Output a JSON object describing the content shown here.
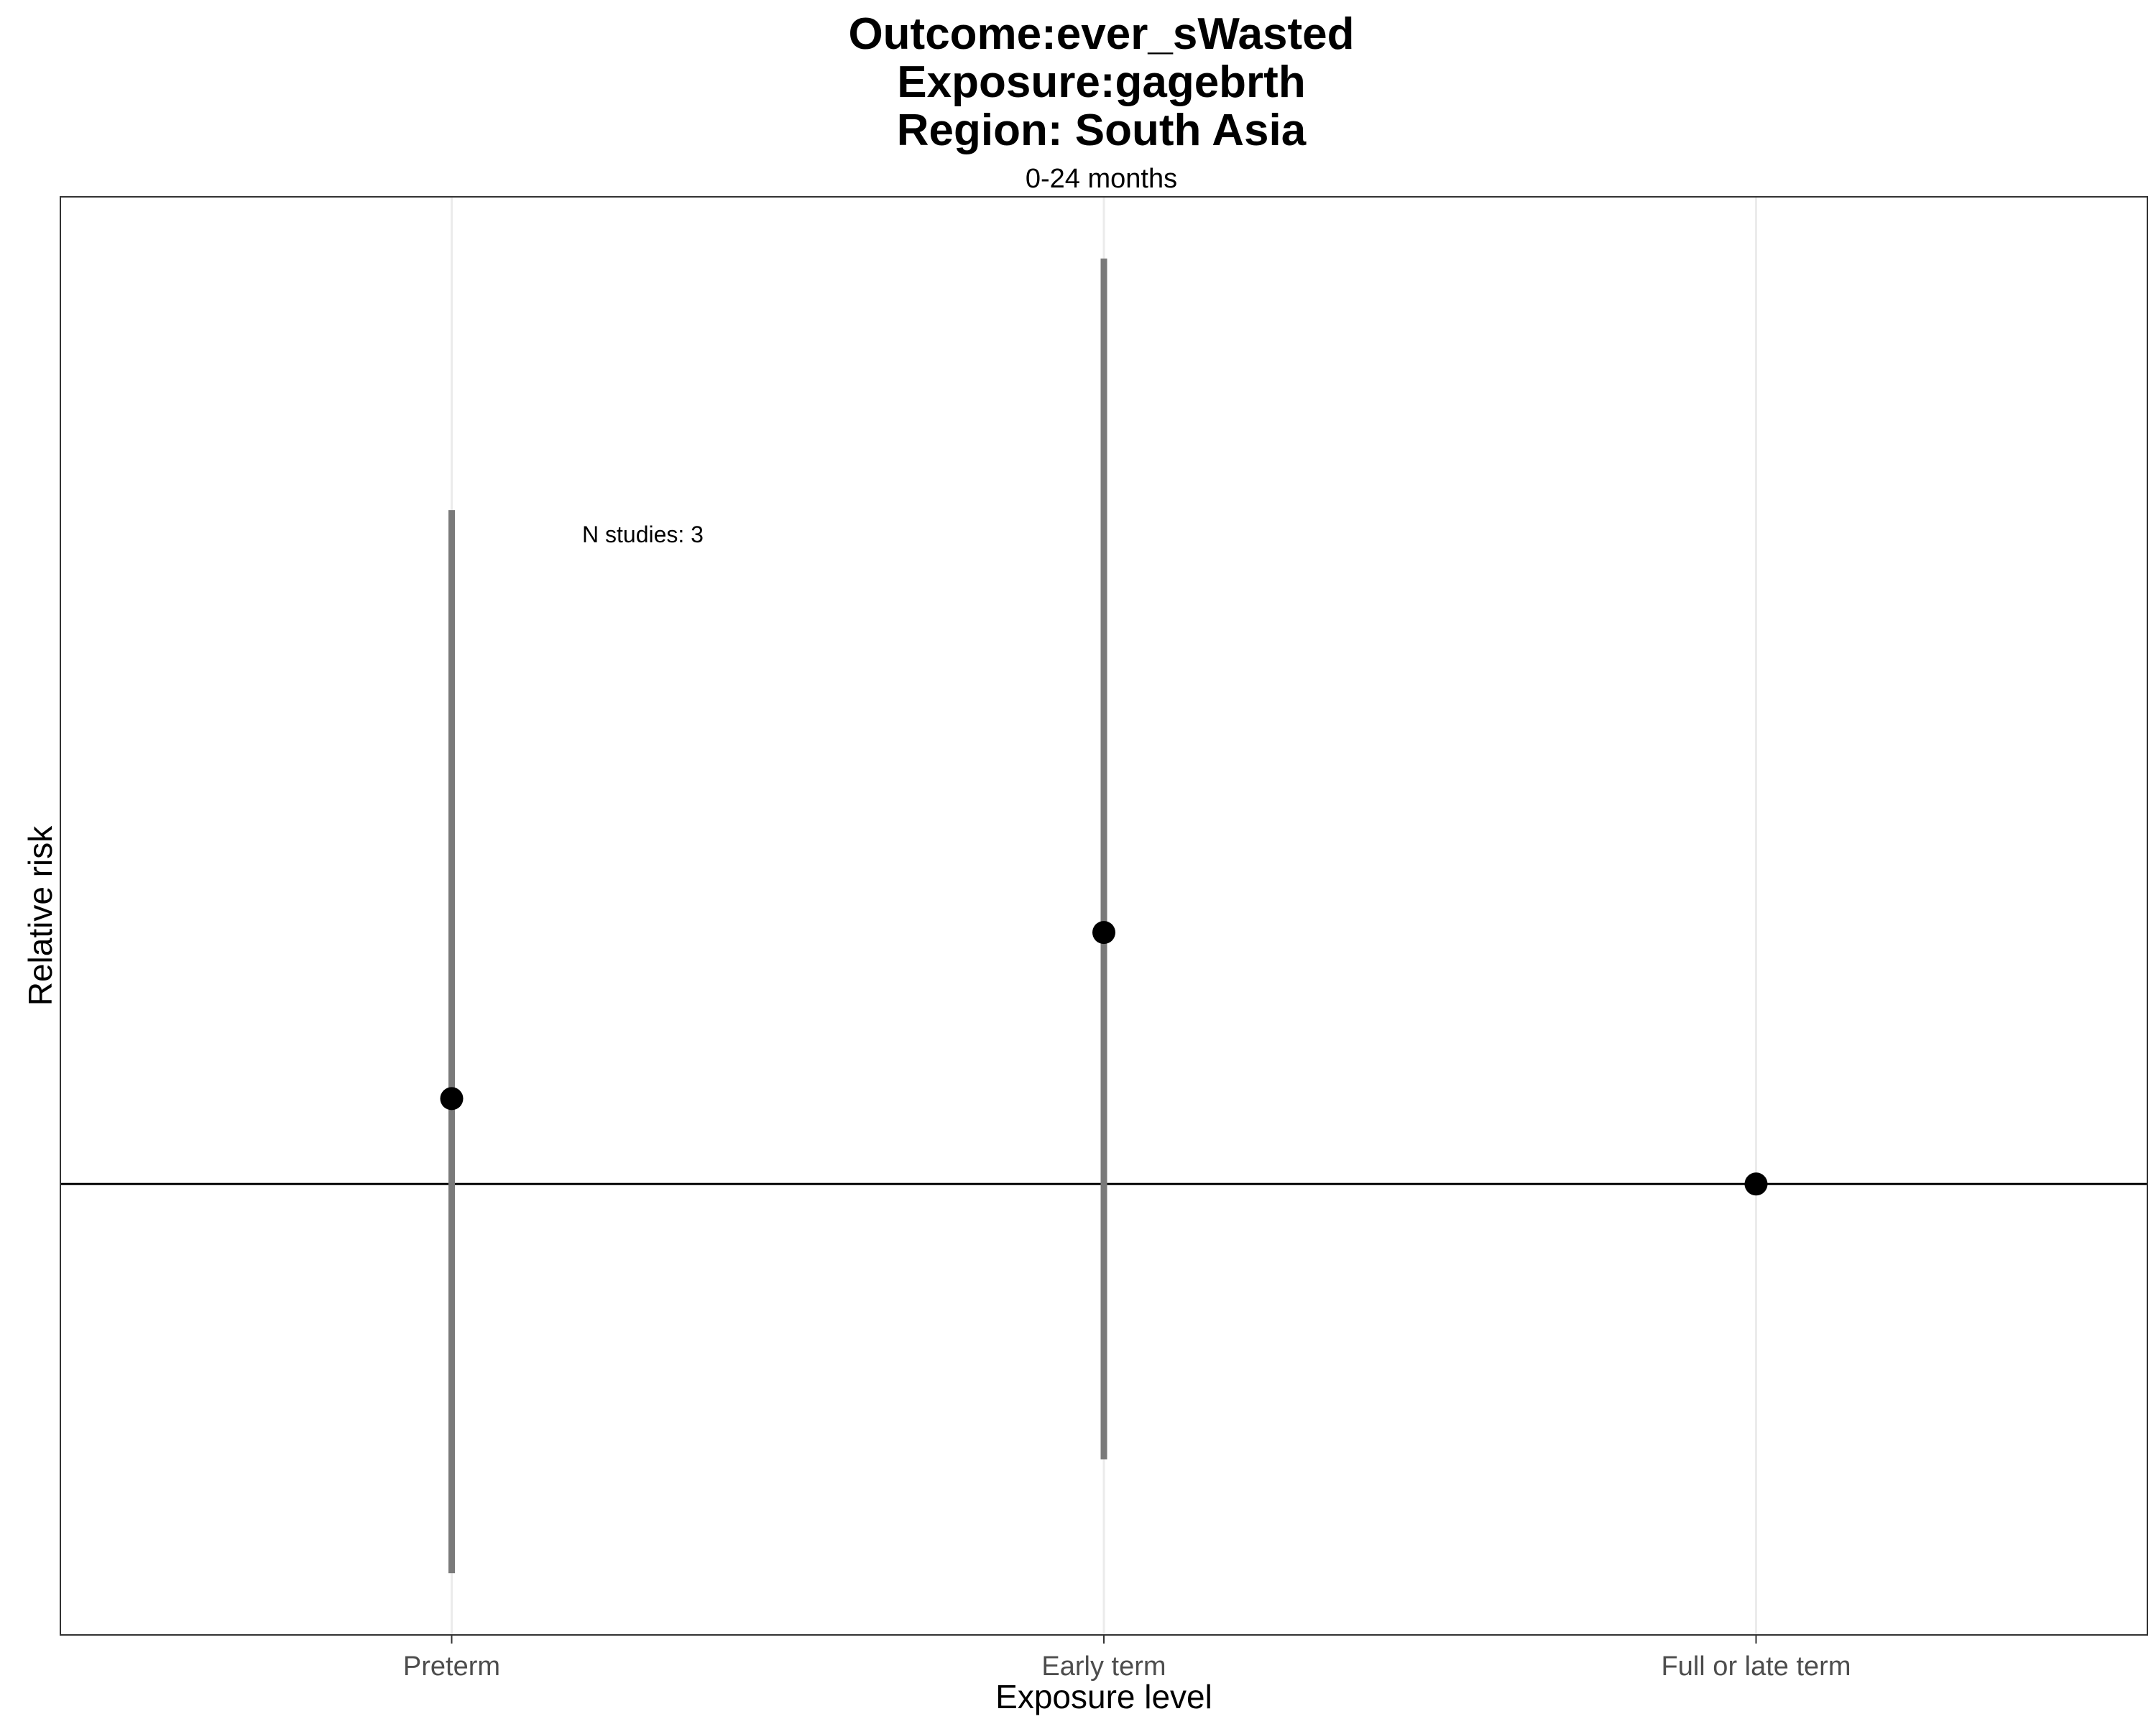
{
  "chart_data": {
    "type": "scatter",
    "title_lines": [
      "Outcome:ever_sWasted",
      "Exposure:gagebrth",
      "Region: South Asia"
    ],
    "subtitle": "0-24 months",
    "xlabel": "Exposure level",
    "ylabel": "Relative risk",
    "categories": [
      "Preterm",
      "Early term",
      "Full or late term"
    ],
    "points": [
      {
        "category": "Preterm",
        "estimate": 1.18,
        "ci_lower": 0.18,
        "ci_upper": 2.42
      },
      {
        "category": "Early term",
        "estimate": 1.53,
        "ci_lower": 0.42,
        "ci_upper": 2.95
      },
      {
        "category": "Full or late term",
        "estimate": 1.0,
        "ci_lower": 1.0,
        "ci_upper": 1.0
      }
    ],
    "reference_line": 1.0,
    "ylim": [
      0.05,
      3.08
    ],
    "annotation": "N studies: 3",
    "grid": "vertical-major",
    "y_tick_labels_shown": false
  }
}
